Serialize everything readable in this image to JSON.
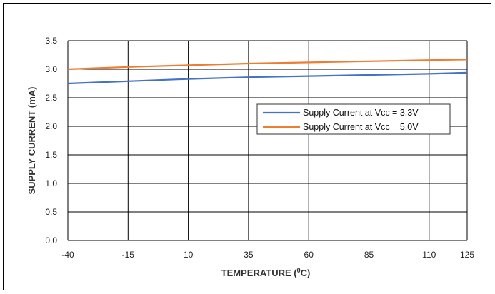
{
  "chart_data": {
    "type": "line",
    "xlabel": "TEMPERATURE (",
    "xlabel_sup": "0",
    "xlabel_suffix": "C)",
    "ylabel": "SUPPLY CURRENT (mA)",
    "xlim": [
      -40,
      125
    ],
    "ylim": [
      0,
      3.5
    ],
    "x_ticks": [
      -40,
      -15,
      10,
      35,
      60,
      85,
      110,
      125
    ],
    "y_ticks": [
      0.0,
      0.5,
      1.0,
      1.5,
      2.0,
      2.5,
      3.0,
      3.5
    ],
    "grid": true,
    "legend_placement": "center-right",
    "series": [
      {
        "name": "Supply Current at Vcc = 3.3V",
        "color": "#4472C4",
        "x": [
          -40,
          -15,
          10,
          35,
          60,
          85,
          110,
          125
        ],
        "y": [
          2.75,
          2.79,
          2.83,
          2.86,
          2.88,
          2.9,
          2.92,
          2.94
        ]
      },
      {
        "name": "Supply Current at Vcc = 5.0V",
        "color": "#ED7D31",
        "x": [
          -40,
          -15,
          10,
          35,
          60,
          85,
          110,
          125
        ],
        "y": [
          3.0,
          3.04,
          3.07,
          3.1,
          3.12,
          3.14,
          3.16,
          3.17
        ]
      }
    ]
  }
}
